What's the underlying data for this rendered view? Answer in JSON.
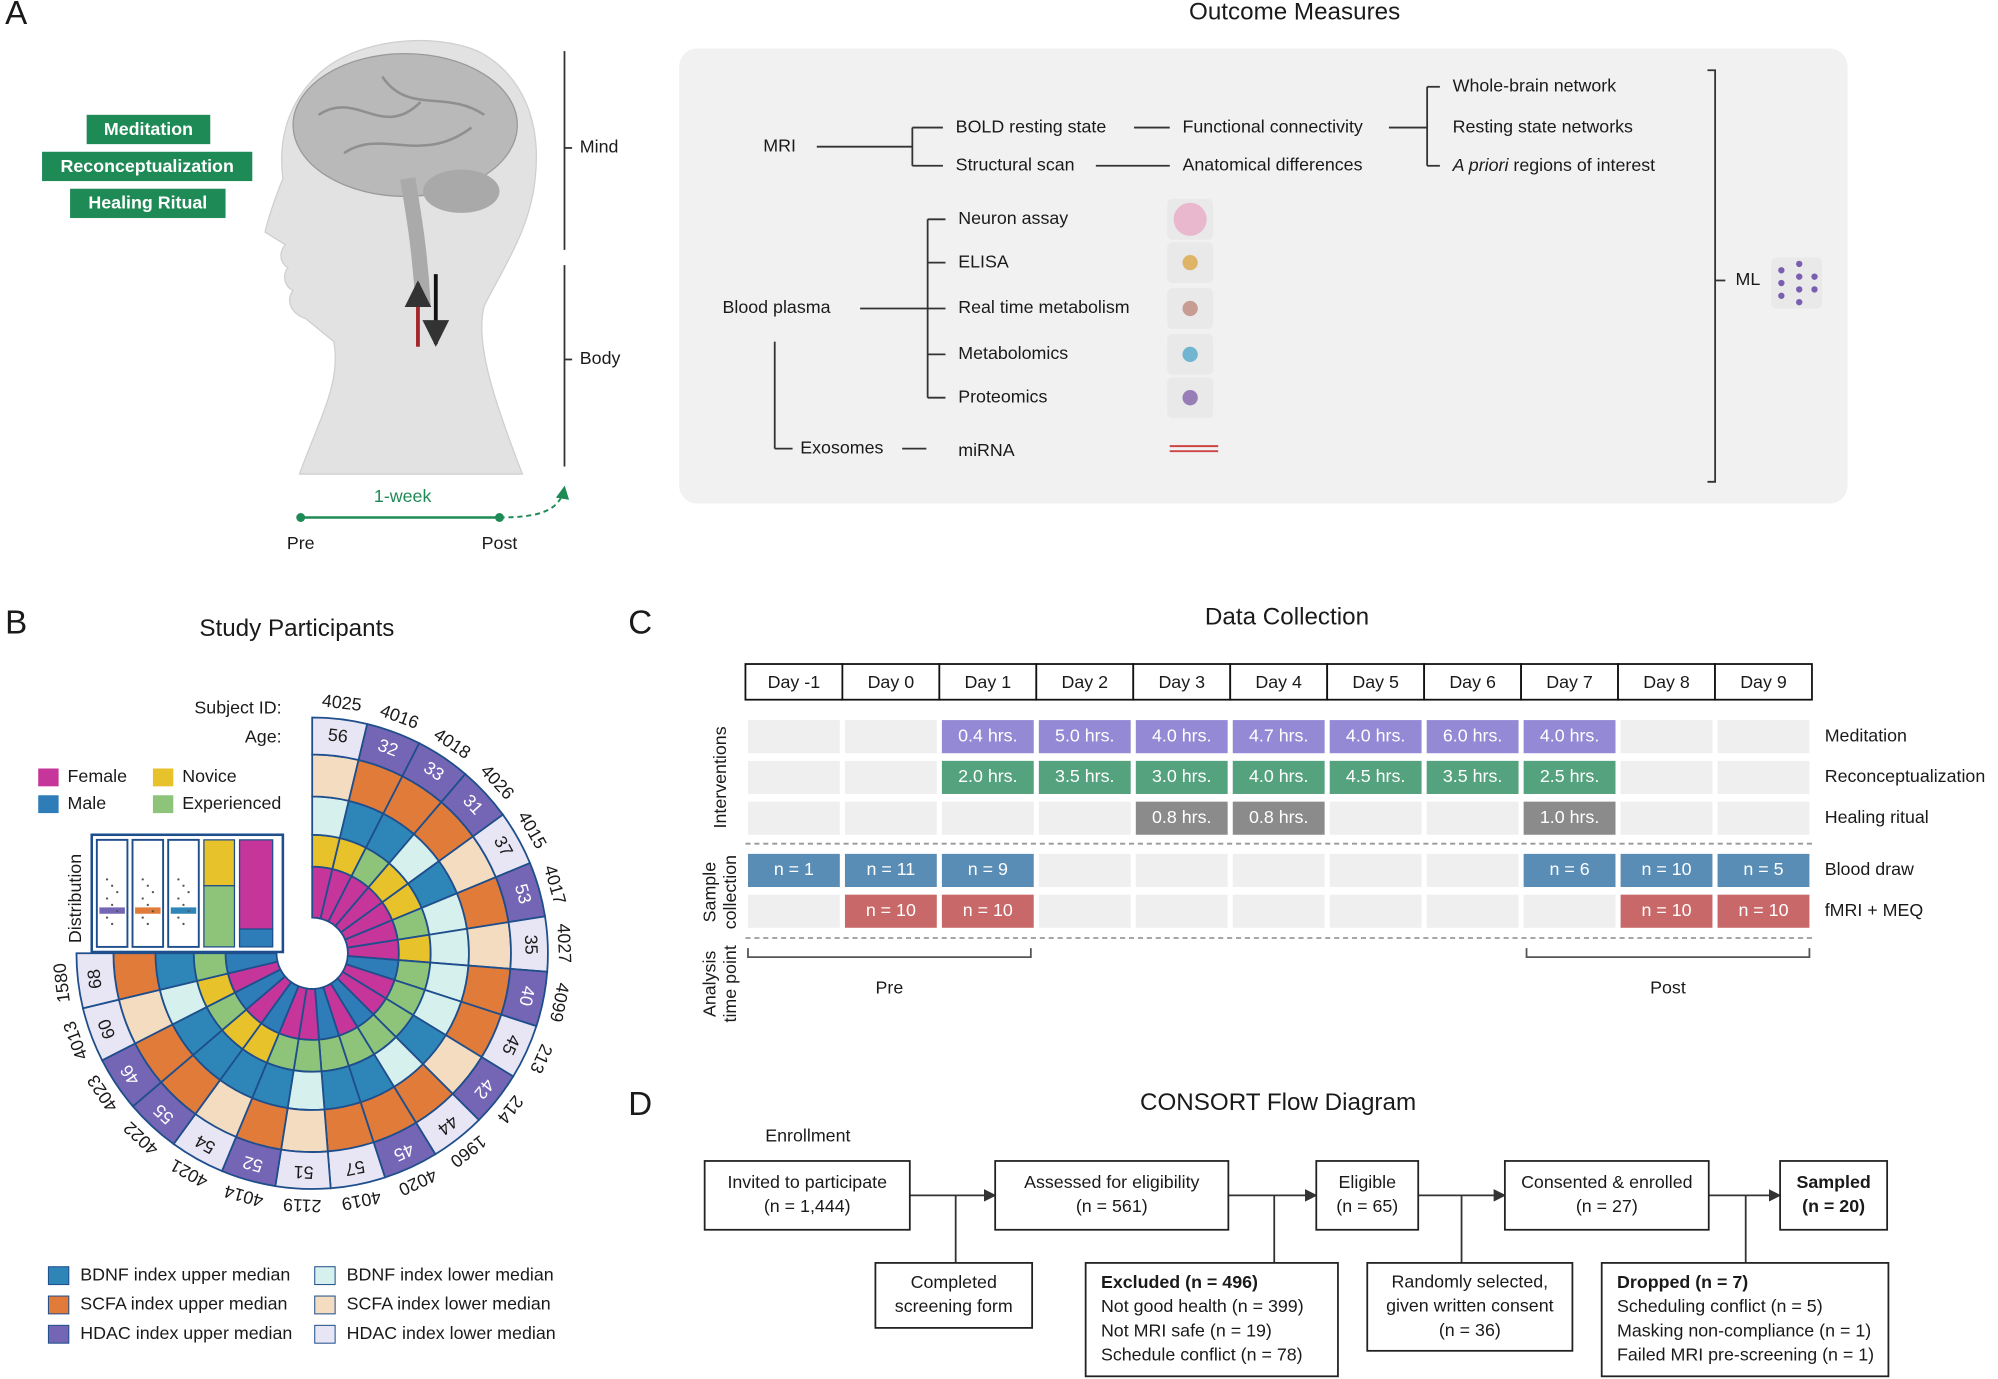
{
  "panel_labels": [
    "A",
    "B",
    "C",
    "D"
  ],
  "panel_a": {
    "interventions": [
      "Meditation",
      "Reconceptualization",
      "Healing Ritual"
    ],
    "mind": "Mind",
    "body": "Body",
    "duration": "1-week",
    "pre": "Pre",
    "post": "Post",
    "title": "Outcome Measures",
    "mri": "MRI",
    "bold": "BOLD resting state",
    "structural": "Structural scan",
    "functional": "Functional connectivity",
    "anatomical": "Anatomical differences",
    "whole_brain": "Whole-brain network",
    "rsn": "Resting state networks",
    "apriori_italic": "A priori",
    "apriori_rest": "regions of interest",
    "blood": "Blood plasma",
    "blood_assays": [
      "Neuron assay",
      "ELISA",
      "Real time metabolism",
      "Metabolomics",
      "Proteomics"
    ],
    "exosomes": "Exosomes",
    "mirna": "miRNA",
    "ml": "ML"
  },
  "panel_b": {
    "title": "Study Participants",
    "subject_id_label": "Subject ID:",
    "age_label": "Age:",
    "legend_top": [
      "Female",
      "Male",
      "Novice",
      "Experienced"
    ],
    "distribution": "Distribution",
    "subjects": [
      {
        "id": "4025",
        "age": 56,
        "female": true,
        "novice": true,
        "bdnf_upper": false,
        "scfa_upper": false,
        "hdac_upper": false
      },
      {
        "id": "4016",
        "age": 32,
        "female": true,
        "novice": true,
        "bdnf_upper": true,
        "scfa_upper": true,
        "hdac_upper": true
      },
      {
        "id": "4018",
        "age": 33,
        "female": true,
        "novice": false,
        "bdnf_upper": true,
        "scfa_upper": true,
        "hdac_upper": true
      },
      {
        "id": "4026",
        "age": 31,
        "female": true,
        "novice": true,
        "bdnf_upper": false,
        "scfa_upper": true,
        "hdac_upper": true
      },
      {
        "id": "4015",
        "age": 37,
        "female": true,
        "novice": true,
        "bdnf_upper": true,
        "scfa_upper": false,
        "hdac_upper": false
      },
      {
        "id": "4017",
        "age": 53,
        "female": true,
        "novice": false,
        "bdnf_upper": false,
        "scfa_upper": true,
        "hdac_upper": true
      },
      {
        "id": "4027",
        "age": 35,
        "female": true,
        "novice": true,
        "bdnf_upper": false,
        "scfa_upper": false,
        "hdac_upper": false
      },
      {
        "id": "4099",
        "age": 40,
        "female": false,
        "novice": false,
        "bdnf_upper": false,
        "scfa_upper": true,
        "hdac_upper": true
      },
      {
        "id": "213",
        "age": 45,
        "female": true,
        "novice": false,
        "bdnf_upper": false,
        "scfa_upper": true,
        "hdac_upper": false
      },
      {
        "id": "214",
        "age": 42,
        "female": true,
        "novice": false,
        "bdnf_upper": true,
        "scfa_upper": false,
        "hdac_upper": true
      },
      {
        "id": "1960",
        "age": 44,
        "female": false,
        "novice": false,
        "bdnf_upper": false,
        "scfa_upper": true,
        "hdac_upper": false
      },
      {
        "id": "4020",
        "age": 45,
        "female": true,
        "novice": false,
        "bdnf_upper": true,
        "scfa_upper": true,
        "hdac_upper": true
      },
      {
        "id": "4019",
        "age": 57,
        "female": false,
        "novice": false,
        "bdnf_upper": true,
        "scfa_upper": true,
        "hdac_upper": false
      },
      {
        "id": "2119",
        "age": 51,
        "female": true,
        "novice": false,
        "bdnf_upper": false,
        "scfa_upper": false,
        "hdac_upper": false
      },
      {
        "id": "4014",
        "age": 52,
        "female": true,
        "novice": false,
        "bdnf_upper": true,
        "scfa_upper": true,
        "hdac_upper": true
      },
      {
        "id": "4021",
        "age": 54,
        "female": false,
        "novice": true,
        "bdnf_upper": true,
        "scfa_upper": false,
        "hdac_upper": false
      },
      {
        "id": "4022",
        "age": 55,
        "female": true,
        "novice": true,
        "bdnf_upper": true,
        "scfa_upper": true,
        "hdac_upper": true
      },
      {
        "id": "4023",
        "age": 46,
        "female": false,
        "novice": false,
        "bdnf_upper": true,
        "scfa_upper": true,
        "hdac_upper": true
      },
      {
        "id": "4013",
        "age": 60,
        "female": true,
        "novice": true,
        "bdnf_upper": false,
        "scfa_upper": false,
        "hdac_upper": false
      },
      {
        "id": "1580",
        "age": 68,
        "female": false,
        "novice": false,
        "bdnf_upper": true,
        "scfa_upper": true,
        "hdac_upper": false
      }
    ],
    "legend_bottom": [
      "BDNF index upper median",
      "SCFA index upper median",
      "HDAC index upper median",
      "BDNF index lower median",
      "SCFA index lower median",
      "HDAC index lower median"
    ]
  },
  "panel_c": {
    "title": "Data Collection",
    "days": [
      "Day -1",
      "Day 0",
      "Day 1",
      "Day 2",
      "Day 3",
      "Day 4",
      "Day 5",
      "Day 6",
      "Day 7",
      "Day 8",
      "Day 9"
    ],
    "groups": [
      [
        "Interventions"
      ],
      [
        "Sample",
        "collection"
      ],
      [
        "Analysis",
        "time point"
      ]
    ],
    "rows": [
      {
        "label": "Meditation",
        "cells": [
          null,
          null,
          "0.4 hrs.",
          "5.0 hrs.",
          "4.0 hrs.",
          "4.7 hrs.",
          "4.0 hrs.",
          "6.0 hrs.",
          "4.0 hrs.",
          null,
          null
        ]
      },
      {
        "label": "Reconceptualization",
        "cells": [
          null,
          null,
          "2.0 hrs.",
          "3.5 hrs.",
          "3.0 hrs.",
          "4.0 hrs.",
          "4.5 hrs.",
          "3.5 hrs.",
          "2.5 hrs.",
          null,
          null
        ]
      },
      {
        "label": "Healing ritual",
        "cells": [
          null,
          null,
          null,
          null,
          "0.8 hrs.",
          "0.8 hrs.",
          null,
          null,
          "1.0 hrs.",
          null,
          null
        ]
      },
      {
        "label": "Blood draw",
        "cells": [
          "n = 1",
          "n = 11",
          "n = 9",
          null,
          null,
          null,
          null,
          null,
          "n = 6",
          "n = 10",
          "n = 5"
        ]
      },
      {
        "label": "fMRI + MEQ",
        "cells": [
          null,
          "n = 10",
          "n = 10",
          null,
          null,
          null,
          null,
          null,
          null,
          "n = 10",
          "n = 10"
        ]
      }
    ],
    "timepoints": [
      "Pre",
      "Post"
    ]
  },
  "panel_d": {
    "title": "CONSORT Flow Diagram",
    "enrollment": "Enrollment",
    "boxes": [
      {
        "lines": [
          "Invited to participate",
          "(n = 1,444)"
        ],
        "bold": 0
      },
      {
        "lines": [
          "Assessed for eligibility",
          "(n = 561)"
        ],
        "bold": 0
      },
      {
        "lines": [
          "Eligible",
          "(n = 65)"
        ],
        "bold": 0
      },
      {
        "lines": [
          "Consented & enrolled",
          "(n = 27)"
        ],
        "bold": 0
      },
      {
        "lines": [
          "Sampled",
          "(n = 20)"
        ],
        "bold": 2
      },
      {
        "lines": [
          "Completed",
          "screening form"
        ],
        "bold": 0
      },
      {
        "lines": [
          "Excluded (n = 496)",
          "Not good health (n = 399)",
          "Not MRI safe (n = 19)",
          "Schedule conflict (n = 78)"
        ],
        "bold": 1
      },
      {
        "lines": [
          "Randomly selected,",
          "given written consent",
          "(n = 36)"
        ],
        "bold": 0
      },
      {
        "lines": [
          "Dropped (n = 7)",
          "Scheduling conflict (n = 5)",
          "Masking non-compliance (n = 1)",
          "Failed MRI pre-screening (n = 1)"
        ],
        "bold": 1
      }
    ]
  }
}
